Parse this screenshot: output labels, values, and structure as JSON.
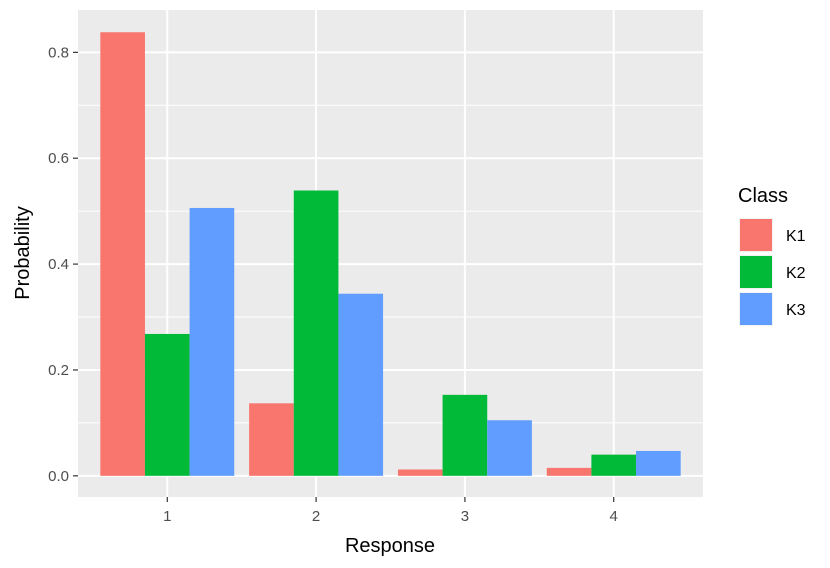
{
  "chart_data": {
    "type": "bar",
    "categories": [
      "1",
      "2",
      "3",
      "4"
    ],
    "series": [
      {
        "name": "K1",
        "color": "#F8766D",
        "values": [
          0.838,
          0.137,
          0.012,
          0.015
        ]
      },
      {
        "name": "K2",
        "color": "#00BA38",
        "values": [
          0.268,
          0.539,
          0.153,
          0.04
        ]
      },
      {
        "name": "K3",
        "color": "#619CFF",
        "values": [
          0.506,
          0.344,
          0.105,
          0.047
        ]
      }
    ],
    "title": "",
    "xlabel": "Response",
    "ylabel": "Probability",
    "ylim": [
      -0.04,
      0.88
    ],
    "yticks": [
      0.0,
      0.2,
      0.4,
      0.6,
      0.8
    ],
    "ytick_labels": [
      "0.0",
      "0.2",
      "0.4",
      "0.6",
      "0.8"
    ],
    "legend": {
      "title": "Class",
      "position": "right"
    },
    "grid": true,
    "panel_background": "#EBEBEB",
    "grid_color": "#FFFFFF"
  }
}
